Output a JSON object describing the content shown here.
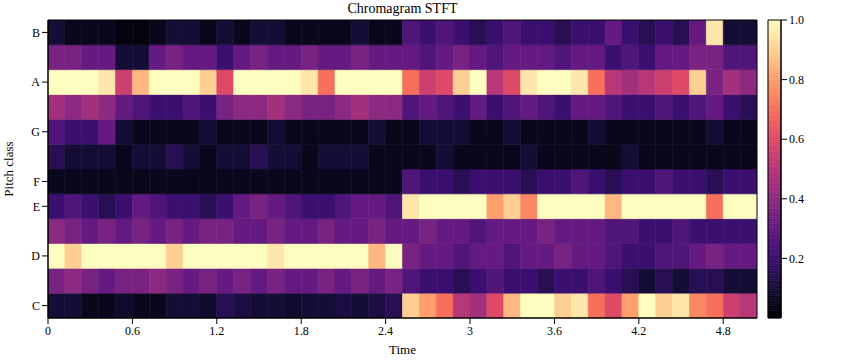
{
  "chart_data": {
    "type": "heatmap",
    "title": "Chromagram STFT",
    "x_label": "Time",
    "y_label": "Pitch class",
    "x_bins": [
      0,
      0.12,
      0.24,
      0.36,
      0.48,
      0.6,
      0.72,
      0.84,
      0.96,
      1.08,
      1.2,
      1.32,
      1.44,
      1.56,
      1.68,
      1.8,
      1.92,
      2.04,
      2.16,
      2.28,
      2.4,
      2.52,
      2.64,
      2.76,
      2.88,
      3.0,
      3.12,
      3.24,
      3.36,
      3.48,
      3.6,
      3.72,
      3.84,
      3.96,
      4.08,
      4.2,
      4.32,
      4.44,
      4.56,
      4.68,
      4.8,
      4.92,
      5.04
    ],
    "y_categories": [
      "C",
      null,
      "D",
      null,
      "E",
      "F",
      null,
      "G",
      null,
      "A",
      null,
      "B"
    ],
    "xlim": [
      0,
      5.04
    ],
    "xticks": [
      0,
      0.6,
      1.2,
      1.8,
      2.4,
      3,
      3.6,
      4.2,
      4.8
    ],
    "values": [
      [
        0.1,
        0.1,
        0.05,
        0.05,
        0.08,
        0.05,
        0.05,
        0.1,
        0.1,
        0.08,
        0.15,
        0.12,
        0.1,
        0.1,
        0.08,
        0.1,
        0.1,
        0.12,
        0.1,
        0.12,
        0.15,
        0.9,
        0.8,
        0.7,
        0.5,
        0.45,
        0.6,
        0.85,
        1,
        1,
        0.9,
        0.95,
        0.7,
        0.6,
        0.8,
        1,
        0.9,
        0.95,
        0.75,
        0.7,
        0.55,
        0.5
      ],
      [
        0.35,
        0.4,
        0.35,
        0.3,
        0.35,
        0.35,
        0.4,
        0.35,
        0.3,
        0.35,
        0.3,
        0.35,
        0.3,
        0.35,
        0.3,
        0.3,
        0.35,
        0.3,
        0.35,
        0.3,
        0.35,
        0.25,
        0.2,
        0.2,
        0.15,
        0.2,
        0.25,
        0.2,
        0.2,
        0.15,
        0.2,
        0.2,
        0.25,
        0.2,
        0.15,
        0.1,
        0.15,
        0.1,
        0.15,
        0.15,
        0.1,
        0.1
      ],
      [
        1,
        0.9,
        1,
        1,
        1,
        1,
        1,
        0.9,
        1,
        1,
        1,
        1,
        1,
        0.95,
        1,
        1,
        1,
        1,
        1,
        0.85,
        1,
        0.35,
        0.3,
        0.3,
        0.25,
        0.3,
        0.3,
        0.25,
        0.3,
        0.3,
        0.35,
        0.3,
        0.3,
        0.25,
        0.2,
        0.2,
        0.25,
        0.25,
        0.3,
        0.35,
        0.3,
        0.3
      ],
      [
        0.4,
        0.35,
        0.3,
        0.35,
        0.3,
        0.35,
        0.3,
        0.35,
        0.3,
        0.35,
        0.35,
        0.3,
        0.3,
        0.35,
        0.3,
        0.3,
        0.35,
        0.3,
        0.3,
        0.35,
        0.3,
        0.3,
        0.35,
        0.3,
        0.3,
        0.25,
        0.3,
        0.3,
        0.3,
        0.35,
        0.3,
        0.3,
        0.3,
        0.25,
        0.25,
        0.2,
        0.2,
        0.25,
        0.2,
        0.2,
        0.2,
        0.2
      ],
      [
        0.2,
        0.25,
        0.2,
        0.15,
        0.2,
        0.3,
        0.25,
        0.2,
        0.2,
        0.15,
        0.2,
        0.3,
        0.35,
        0.3,
        0.25,
        0.2,
        0.2,
        0.25,
        0.3,
        0.3,
        0.25,
        0.95,
        1,
        1,
        1,
        1,
        0.8,
        0.9,
        0.75,
        1,
        1,
        1,
        1,
        0.85,
        1,
        1,
        1,
        1,
        1,
        0.7,
        1,
        1
      ],
      [
        0.05,
        0.05,
        0.05,
        0.05,
        0.05,
        0.05,
        0.05,
        0.05,
        0.05,
        0.05,
        0.05,
        0.05,
        0.05,
        0.05,
        0.05,
        0.05,
        0.05,
        0.05,
        0.05,
        0.05,
        0.05,
        0.25,
        0.2,
        0.2,
        0.15,
        0.2,
        0.2,
        0.2,
        0.15,
        0.2,
        0.2,
        0.25,
        0.2,
        0.15,
        0.2,
        0.2,
        0.25,
        0.2,
        0.2,
        0.15,
        0.2,
        0.2
      ],
      [
        0.15,
        0.1,
        0.1,
        0.1,
        0.05,
        0.1,
        0.1,
        0.15,
        0.1,
        0.05,
        0.1,
        0.1,
        0.15,
        0.1,
        0.1,
        0.05,
        0.1,
        0.1,
        0.1,
        0.05,
        0.05,
        0.05,
        0.05,
        0.1,
        0.05,
        0.05,
        0.05,
        0.05,
        0.1,
        0.05,
        0.05,
        0.05,
        0.05,
        0.05,
        0.1,
        0.05,
        0.05,
        0.05,
        0.05,
        0.05,
        0.05,
        0.05
      ],
      [
        0.25,
        0.2,
        0.2,
        0.3,
        0.1,
        0.05,
        0.05,
        0.05,
        0.05,
        0.1,
        0.05,
        0.05,
        0.05,
        0.1,
        0.05,
        0.05,
        0.05,
        0.05,
        0.05,
        0.1,
        0.05,
        0.05,
        0.1,
        0.1,
        0.1,
        0.05,
        0.05,
        0.1,
        0.05,
        0.05,
        0.05,
        0.05,
        0.1,
        0.05,
        0.05,
        0.05,
        0.05,
        0.05,
        0.05,
        0.1,
        0.05,
        0.05
      ],
      [
        0.45,
        0.4,
        0.45,
        0.4,
        0.3,
        0.25,
        0.2,
        0.2,
        0.25,
        0.2,
        0.35,
        0.4,
        0.4,
        0.45,
        0.4,
        0.35,
        0.35,
        0.4,
        0.45,
        0.4,
        0.4,
        0.25,
        0.3,
        0.25,
        0.2,
        0.3,
        0.2,
        0.25,
        0.3,
        0.25,
        0.2,
        0.3,
        0.3,
        0.25,
        0.2,
        0.2,
        0.25,
        0.2,
        0.25,
        0.3,
        0.2,
        0.15
      ],
      [
        1,
        1,
        1,
        0.95,
        0.55,
        0.85,
        1,
        1,
        1,
        0.9,
        0.6,
        1,
        1,
        1,
        1,
        0.95,
        0.7,
        1,
        1,
        1,
        1,
        0.7,
        0.55,
        0.6,
        0.9,
        1,
        0.5,
        0.6,
        0.95,
        1,
        1,
        0.95,
        0.7,
        0.5,
        0.45,
        0.5,
        0.55,
        0.6,
        0.9,
        0.35,
        0.45,
        0.4
      ],
      [
        0.35,
        0.35,
        0.3,
        0.3,
        0.1,
        0.1,
        0.3,
        0.35,
        0.3,
        0.3,
        0.2,
        0.3,
        0.35,
        0.3,
        0.3,
        0.35,
        0.3,
        0.3,
        0.35,
        0.3,
        0.3,
        0.3,
        0.25,
        0.3,
        0.35,
        0.3,
        0.25,
        0.3,
        0.3,
        0.3,
        0.25,
        0.3,
        0.3,
        0.2,
        0.25,
        0.2,
        0.3,
        0.3,
        0.35,
        0.35,
        0.25,
        0.25
      ],
      [
        0.1,
        0.05,
        0.05,
        0.05,
        0.02,
        0.02,
        0.05,
        0.1,
        0.1,
        0.05,
        0.1,
        0.05,
        0.1,
        0.1,
        0.05,
        0.05,
        0.05,
        0.05,
        0.1,
        0.05,
        0.05,
        0.25,
        0.2,
        0.25,
        0.2,
        0.15,
        0.2,
        0.25,
        0.2,
        0.2,
        0.15,
        0.2,
        0.2,
        0.3,
        0.2,
        0.15,
        0.2,
        0.15,
        0.3,
        0.95,
        0.1,
        0.1
      ]
    ],
    "colorbar": {
      "range": [
        0,
        1
      ],
      "ticks": [
        0.2,
        0.4,
        0.6,
        0.8,
        {
          "value": 1,
          "label": "1.0"
        }
      ]
    }
  }
}
